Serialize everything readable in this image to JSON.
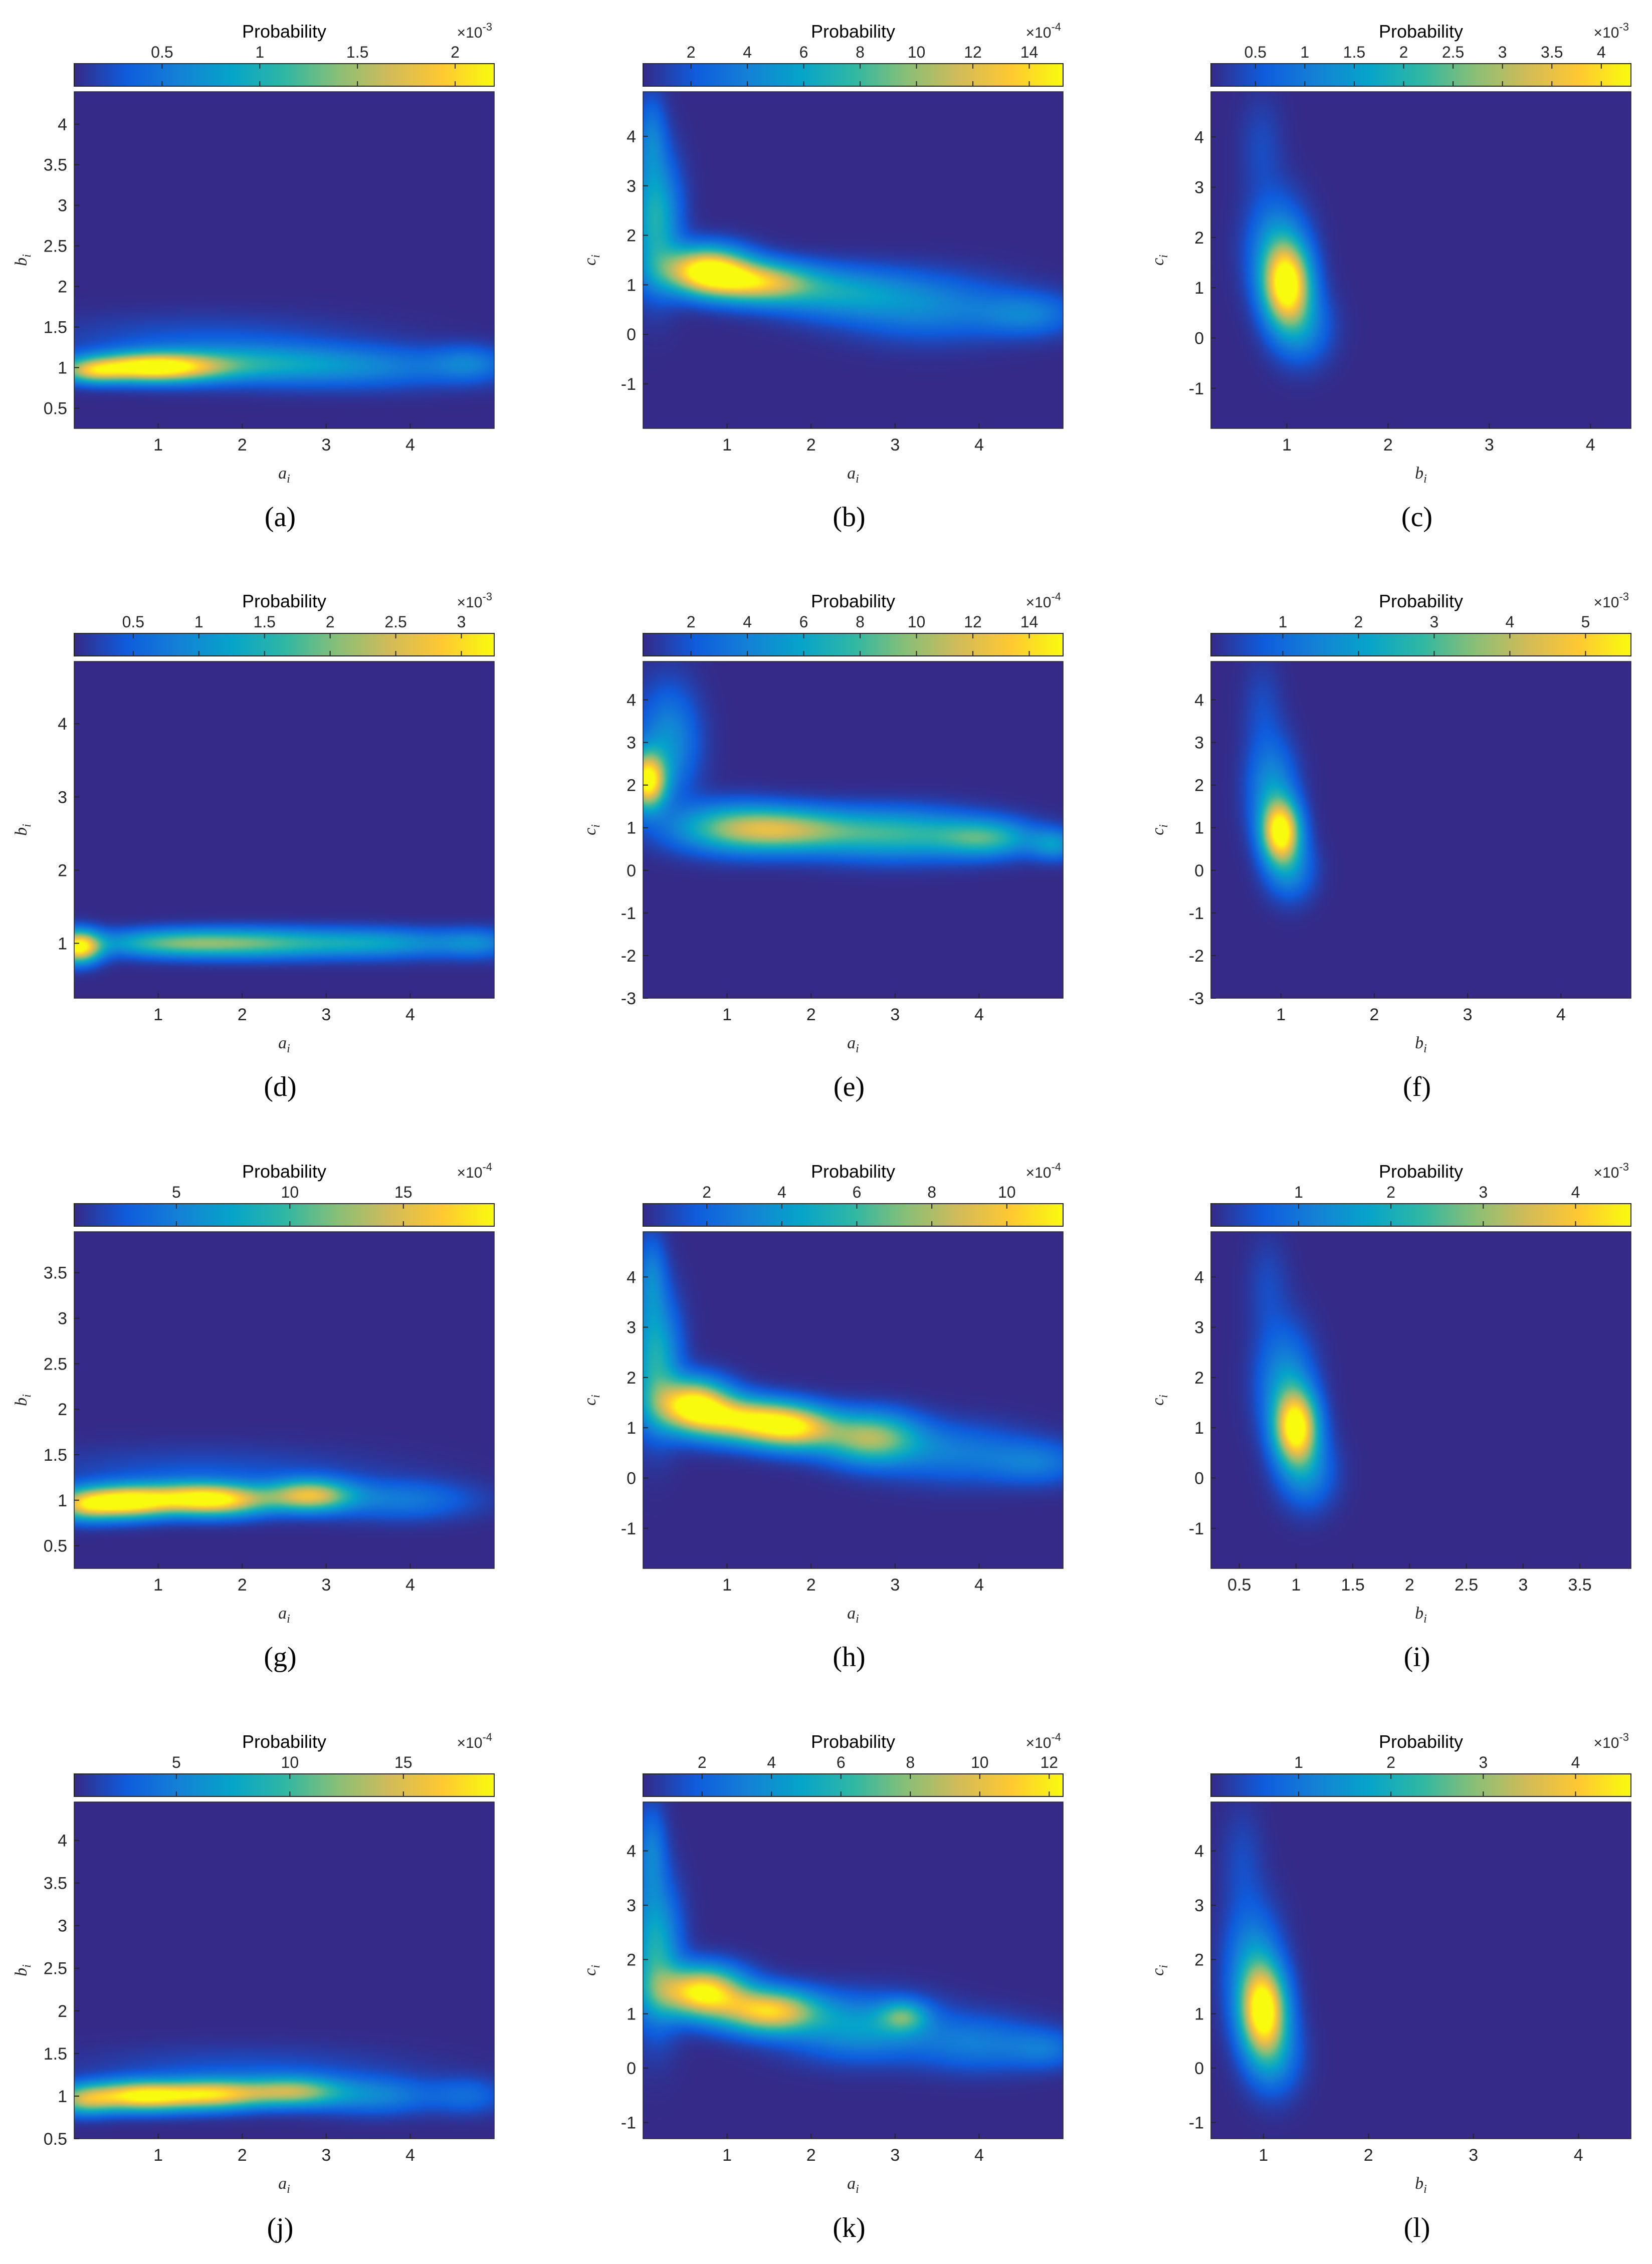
{
  "figure": {
    "colormap": [
      "#352a87",
      "#0f5cdd",
      "#1481d6",
      "#06a4ca",
      "#2eb7a4",
      "#87bf77",
      "#d1bb59",
      "#fec832",
      "#f9fb0e"
    ],
    "background": "#352a87",
    "colorbar_title": "Probability"
  },
  "chart_data": [
    {
      "id": "a",
      "caption": "(a)",
      "type": "heatmap",
      "colorbar": {
        "title": "Probability",
        "exponent_label": "×10",
        "exponent": "-3",
        "ticks": [
          "0.5",
          "1",
          "1.5",
          "2"
        ],
        "range": [
          0.05,
          2.2
        ],
        "tick_values": [
          0.5,
          1,
          1.5,
          2
        ]
      },
      "xlabel_base": "a",
      "xlabel_sub": "i",
      "ylabel_base": "b",
      "ylabel_sub": "i",
      "xlim": [
        0,
        5
      ],
      "ylim": [
        0.25,
        4.4
      ],
      "xticks": [
        1,
        2,
        3,
        4
      ],
      "yticks": [
        0.5,
        1,
        1.5,
        2,
        2.5,
        3,
        3.5,
        4
      ],
      "blobs": [
        {
          "x": 0.9,
          "y": 1.0,
          "sx": 0.55,
          "sy": 0.12,
          "v": 1.0
        },
        {
          "x": 0.2,
          "y": 0.95,
          "sx": 0.25,
          "sy": 0.1,
          "v": 0.45
        },
        {
          "x": 1.9,
          "y": 1.05,
          "sx": 0.9,
          "sy": 0.16,
          "v": 0.3
        },
        {
          "x": 3.4,
          "y": 1.0,
          "sx": 1.0,
          "sy": 0.18,
          "v": 0.22
        },
        {
          "x": 4.7,
          "y": 1.05,
          "sx": 0.3,
          "sy": 0.15,
          "v": 0.18
        },
        {
          "x": 1.5,
          "y": 1.35,
          "sx": 1.3,
          "sy": 0.22,
          "v": 0.1
        }
      ]
    },
    {
      "id": "b",
      "caption": "(b)",
      "type": "heatmap",
      "colorbar": {
        "title": "Probability",
        "exponent_label": "×10",
        "exponent": "-4",
        "ticks": [
          "2",
          "4",
          "6",
          "8",
          "10",
          "12",
          "14"
        ],
        "range": [
          0.3,
          15.2
        ],
        "tick_values": [
          2,
          4,
          6,
          8,
          10,
          12,
          14
        ]
      },
      "xlabel_base": "a",
      "xlabel_sub": "i",
      "ylabel_base": "c",
      "ylabel_sub": "i",
      "xlim": [
        0,
        5
      ],
      "ylim": [
        -1.9,
        4.9
      ],
      "xticks": [
        1,
        2,
        3,
        4
      ],
      "yticks": [
        -1,
        0,
        1,
        2,
        3,
        4
      ],
      "blobs": [
        {
          "x": 0.75,
          "y": 1.3,
          "sx": 0.35,
          "sy": 0.32,
          "v": 1.0
        },
        {
          "x": 1.35,
          "y": 1.05,
          "sx": 0.45,
          "sy": 0.28,
          "v": 0.75
        },
        {
          "x": 0.15,
          "y": 2.3,
          "sx": 0.2,
          "sy": 0.9,
          "v": 0.45
        },
        {
          "x": 2.3,
          "y": 0.85,
          "sx": 0.6,
          "sy": 0.35,
          "v": 0.32
        },
        {
          "x": 3.4,
          "y": 0.55,
          "sx": 0.7,
          "sy": 0.45,
          "v": 0.25
        },
        {
          "x": 4.6,
          "y": 0.4,
          "sx": 0.4,
          "sy": 0.3,
          "v": 0.22
        },
        {
          "x": 0.1,
          "y": 4.0,
          "sx": 0.12,
          "sy": 0.6,
          "v": 0.2
        }
      ]
    },
    {
      "id": "c",
      "caption": "(c)",
      "type": "heatmap",
      "colorbar": {
        "title": "Probability",
        "exponent_label": "×10",
        "exponent": "-3",
        "ticks": [
          "0.5",
          "1",
          "1.5",
          "2",
          "2.5",
          "3",
          "3.5",
          "4"
        ],
        "range": [
          0.05,
          4.3
        ],
        "tick_values": [
          0.5,
          1,
          1.5,
          2,
          2.5,
          3,
          3.5,
          4
        ]
      },
      "xlabel_base": "b",
      "xlabel_sub": "i",
      "ylabel_base": "c",
      "ylabel_sub": "i",
      "xlim": [
        0.25,
        4.4
      ],
      "ylim": [
        -1.8,
        4.9
      ],
      "xticks": [
        1,
        2,
        3,
        4
      ],
      "yticks": [
        -1,
        0,
        1,
        2,
        3,
        4
      ],
      "blobs": [
        {
          "x": 1.0,
          "y": 1.05,
          "sx": 0.16,
          "sy": 0.55,
          "v": 1.0
        },
        {
          "x": 0.9,
          "y": 1.8,
          "sx": 0.2,
          "sy": 0.7,
          "v": 0.3
        },
        {
          "x": 1.15,
          "y": 0.2,
          "sx": 0.2,
          "sy": 0.5,
          "v": 0.25
        },
        {
          "x": 0.75,
          "y": 3.8,
          "sx": 0.15,
          "sy": 0.7,
          "v": 0.08
        }
      ]
    },
    {
      "id": "d",
      "caption": "(d)",
      "type": "heatmap",
      "colorbar": {
        "title": "Probability",
        "exponent_label": "×10",
        "exponent": "-3",
        "ticks": [
          "0.5",
          "1",
          "1.5",
          "2",
          "2.5",
          "3"
        ],
        "range": [
          0.05,
          3.25
        ],
        "tick_values": [
          0.5,
          1,
          1.5,
          2,
          2.5,
          3
        ]
      },
      "xlabel_base": "a",
      "xlabel_sub": "i",
      "ylabel_base": "b",
      "ylabel_sub": "i",
      "xlim": [
        0,
        5
      ],
      "ylim": [
        0.25,
        4.85
      ],
      "xticks": [
        1,
        2,
        3,
        4
      ],
      "yticks": [
        1,
        2,
        3,
        4
      ],
      "blobs": [
        {
          "x": 0.05,
          "y": 0.95,
          "sx": 0.18,
          "sy": 0.15,
          "v": 1.0
        },
        {
          "x": 1.1,
          "y": 1.0,
          "sx": 0.6,
          "sy": 0.13,
          "v": 0.48
        },
        {
          "x": 2.1,
          "y": 1.0,
          "sx": 0.6,
          "sy": 0.14,
          "v": 0.4
        },
        {
          "x": 3.5,
          "y": 1.0,
          "sx": 0.8,
          "sy": 0.14,
          "v": 0.38
        },
        {
          "x": 4.8,
          "y": 1.0,
          "sx": 0.3,
          "sy": 0.14,
          "v": 0.2
        }
      ]
    },
    {
      "id": "e",
      "caption": "(e)",
      "type": "heatmap",
      "colorbar": {
        "title": "Probability",
        "exponent_label": "×10",
        "exponent": "-4",
        "ticks": [
          "2",
          "4",
          "6",
          "8",
          "10",
          "12",
          "14"
        ],
        "range": [
          0.3,
          15.2
        ],
        "tick_values": [
          2,
          4,
          6,
          8,
          10,
          12,
          14
        ]
      },
      "xlabel_base": "a",
      "xlabel_sub": "i",
      "ylabel_base": "c",
      "ylabel_sub": "i",
      "xlim": [
        0,
        5
      ],
      "ylim": [
        -3.0,
        4.9
      ],
      "xticks": [
        1,
        2,
        3,
        4
      ],
      "yticks": [
        -3,
        -2,
        -1,
        0,
        1,
        2,
        3,
        4
      ],
      "blobs": [
        {
          "x": 0.05,
          "y": 2.1,
          "sx": 0.15,
          "sy": 0.45,
          "v": 1.0
        },
        {
          "x": 0.3,
          "y": 3.0,
          "sx": 0.25,
          "sy": 0.9,
          "v": 0.3
        },
        {
          "x": 1.7,
          "y": 0.95,
          "sx": 0.55,
          "sy": 0.35,
          "v": 0.55
        },
        {
          "x": 1.0,
          "y": 1.0,
          "sx": 0.5,
          "sy": 0.4,
          "v": 0.42
        },
        {
          "x": 3.0,
          "y": 0.85,
          "sx": 0.7,
          "sy": 0.4,
          "v": 0.48
        },
        {
          "x": 4.1,
          "y": 0.75,
          "sx": 0.4,
          "sy": 0.3,
          "v": 0.42
        },
        {
          "x": 4.9,
          "y": 0.6,
          "sx": 0.2,
          "sy": 0.25,
          "v": 0.3
        }
      ]
    },
    {
      "id": "f",
      "caption": "(f)",
      "type": "heatmap",
      "colorbar": {
        "title": "Probability",
        "exponent_label": "×10",
        "exponent": "-3",
        "ticks": [
          "1",
          "2",
          "3",
          "4",
          "5"
        ],
        "range": [
          0.05,
          5.6
        ],
        "tick_values": [
          1,
          2,
          3,
          4,
          5
        ]
      },
      "xlabel_base": "b",
      "xlabel_sub": "i",
      "ylabel_base": "c",
      "ylabel_sub": "i",
      "xlim": [
        0.25,
        4.75
      ],
      "ylim": [
        -3.0,
        4.9
      ],
      "xticks": [
        1,
        2,
        3,
        4
      ],
      "yticks": [
        -3,
        -2,
        -1,
        0,
        1,
        2,
        3,
        4
      ],
      "blobs": [
        {
          "x": 1.0,
          "y": 0.9,
          "sx": 0.14,
          "sy": 0.5,
          "v": 1.0
        },
        {
          "x": 0.9,
          "y": 1.9,
          "sx": 0.18,
          "sy": 0.8,
          "v": 0.3
        },
        {
          "x": 1.1,
          "y": 0.0,
          "sx": 0.18,
          "sy": 0.5,
          "v": 0.25
        },
        {
          "x": 0.8,
          "y": 3.8,
          "sx": 0.15,
          "sy": 0.8,
          "v": 0.08
        }
      ]
    },
    {
      "id": "g",
      "caption": "(g)",
      "type": "heatmap",
      "colorbar": {
        "title": "Probability",
        "exponent_label": "×10",
        "exponent": "-4",
        "ticks": [
          "5",
          "10",
          "15"
        ],
        "range": [
          0.5,
          19.0
        ],
        "tick_values": [
          5,
          10,
          15
        ]
      },
      "xlabel_base": "a",
      "xlabel_sub": "i",
      "ylabel_base": "b",
      "ylabel_sub": "i",
      "xlim": [
        0,
        5
      ],
      "ylim": [
        0.25,
        3.95
      ],
      "xticks": [
        1,
        2,
        3,
        4
      ],
      "yticks": [
        0.5,
        1,
        1.5,
        2,
        2.5,
        3,
        3.5
      ],
      "blobs": [
        {
          "x": 0.6,
          "y": 0.98,
          "sx": 0.35,
          "sy": 0.12,
          "v": 1.0
        },
        {
          "x": 0.1,
          "y": 0.95,
          "sx": 0.25,
          "sy": 0.12,
          "v": 0.6
        },
        {
          "x": 1.8,
          "y": 1.0,
          "sx": 0.4,
          "sy": 0.12,
          "v": 0.72
        },
        {
          "x": 2.8,
          "y": 1.05,
          "sx": 0.35,
          "sy": 0.12,
          "v": 0.75
        },
        {
          "x": 1.3,
          "y": 1.02,
          "sx": 0.4,
          "sy": 0.12,
          "v": 0.6
        },
        {
          "x": 3.9,
          "y": 1.0,
          "sx": 0.6,
          "sy": 0.15,
          "v": 0.22
        },
        {
          "x": 1.5,
          "y": 1.3,
          "sx": 1.4,
          "sy": 0.2,
          "v": 0.1
        }
      ]
    },
    {
      "id": "h",
      "caption": "(h)",
      "type": "heatmap",
      "colorbar": {
        "title": "Probability",
        "exponent_label": "×10",
        "exponent": "-4",
        "ticks": [
          "2",
          "4",
          "6",
          "8",
          "10"
        ],
        "range": [
          0.3,
          11.5
        ],
        "tick_values": [
          2,
          4,
          6,
          8,
          10
        ]
      },
      "xlabel_base": "a",
      "xlabel_sub": "i",
      "ylabel_base": "c",
      "ylabel_sub": "i",
      "xlim": [
        0,
        5
      ],
      "ylim": [
        -1.8,
        4.9
      ],
      "xticks": [
        1,
        2,
        3,
        4
      ],
      "yticks": [
        -1,
        0,
        1,
        2,
        3,
        4
      ],
      "blobs": [
        {
          "x": 0.6,
          "y": 1.45,
          "sx": 0.3,
          "sy": 0.35,
          "v": 1.0
        },
        {
          "x": 1.2,
          "y": 1.15,
          "sx": 0.4,
          "sy": 0.3,
          "v": 0.82
        },
        {
          "x": 1.8,
          "y": 1.0,
          "sx": 0.35,
          "sy": 0.3,
          "v": 0.8
        },
        {
          "x": 2.7,
          "y": 0.8,
          "sx": 0.4,
          "sy": 0.35,
          "v": 0.65
        },
        {
          "x": 0.15,
          "y": 2.3,
          "sx": 0.2,
          "sy": 0.9,
          "v": 0.45
        },
        {
          "x": 3.7,
          "y": 0.5,
          "sx": 0.6,
          "sy": 0.4,
          "v": 0.22
        },
        {
          "x": 4.7,
          "y": 0.3,
          "sx": 0.4,
          "sy": 0.3,
          "v": 0.2
        },
        {
          "x": 0.1,
          "y": 4.0,
          "sx": 0.12,
          "sy": 0.6,
          "v": 0.22
        }
      ]
    },
    {
      "id": "i",
      "caption": "(i)",
      "type": "heatmap",
      "colorbar": {
        "title": "Probability",
        "exponent_label": "×10",
        "exponent": "-3",
        "ticks": [
          "1",
          "2",
          "3",
          "4"
        ],
        "range": [
          0.05,
          4.6
        ],
        "tick_values": [
          1,
          2,
          3,
          4
        ]
      },
      "xlabel_base": "b",
      "xlabel_sub": "i",
      "ylabel_base": "c",
      "ylabel_sub": "i",
      "xlim": [
        0.25,
        3.95
      ],
      "ylim": [
        -1.8,
        4.9
      ],
      "xticks": [
        0.5,
        1,
        1.5,
        2,
        2.5,
        3,
        3.5
      ],
      "yticks": [
        -1,
        0,
        1,
        2,
        3,
        4
      ],
      "blobs": [
        {
          "x": 1.0,
          "y": 1.0,
          "sx": 0.13,
          "sy": 0.5,
          "v": 1.0
        },
        {
          "x": 0.9,
          "y": 1.9,
          "sx": 0.17,
          "sy": 0.75,
          "v": 0.3
        },
        {
          "x": 1.1,
          "y": 0.1,
          "sx": 0.17,
          "sy": 0.5,
          "v": 0.25
        },
        {
          "x": 0.75,
          "y": 3.8,
          "sx": 0.13,
          "sy": 0.7,
          "v": 0.08
        }
      ]
    },
    {
      "id": "j",
      "caption": "(j)",
      "type": "heatmap",
      "colorbar": {
        "title": "Probability",
        "exponent_label": "×10",
        "exponent": "-4",
        "ticks": [
          "5",
          "10",
          "15"
        ],
        "range": [
          0.5,
          19.0
        ],
        "tick_values": [
          5,
          10,
          15
        ]
      },
      "xlabel_base": "a",
      "xlabel_sub": "i",
      "ylabel_base": "b",
      "ylabel_sub": "i",
      "xlim": [
        0,
        5
      ],
      "ylim": [
        0.5,
        4.45
      ],
      "xticks": [
        1,
        2,
        3,
        4
      ],
      "yticks": [
        0.5,
        1,
        1.5,
        2,
        2.5,
        3,
        3.5,
        4
      ],
      "blobs": [
        {
          "x": 0.8,
          "y": 1.0,
          "sx": 0.45,
          "sy": 0.12,
          "v": 1.0
        },
        {
          "x": 1.7,
          "y": 1.02,
          "sx": 0.4,
          "sy": 0.12,
          "v": 0.75
        },
        {
          "x": 2.6,
          "y": 1.05,
          "sx": 0.4,
          "sy": 0.12,
          "v": 0.62
        },
        {
          "x": 0.1,
          "y": 0.95,
          "sx": 0.25,
          "sy": 0.12,
          "v": 0.5
        },
        {
          "x": 3.6,
          "y": 1.0,
          "sx": 0.5,
          "sy": 0.15,
          "v": 0.25
        },
        {
          "x": 4.7,
          "y": 1.0,
          "sx": 0.3,
          "sy": 0.15,
          "v": 0.16
        },
        {
          "x": 2.0,
          "y": 1.3,
          "sx": 1.3,
          "sy": 0.2,
          "v": 0.1
        }
      ]
    },
    {
      "id": "k",
      "caption": "(k)",
      "type": "heatmap",
      "colorbar": {
        "title": "Probability",
        "exponent_label": "×10",
        "exponent": "-4",
        "ticks": [
          "2",
          "4",
          "6",
          "8",
          "10",
          "12"
        ],
        "range": [
          0.3,
          12.4
        ],
        "tick_values": [
          2,
          4,
          6,
          8,
          10,
          12
        ]
      },
      "xlabel_base": "a",
      "xlabel_sub": "i",
      "ylabel_base": "c",
      "ylabel_sub": "i",
      "xlim": [
        0,
        5
      ],
      "ylim": [
        -1.3,
        4.9
      ],
      "xticks": [
        1,
        2,
        3,
        4
      ],
      "yticks": [
        -1,
        0,
        1,
        2,
        3,
        4
      ],
      "blobs": [
        {
          "x": 0.7,
          "y": 1.4,
          "sx": 0.35,
          "sy": 0.32,
          "v": 1.0
        },
        {
          "x": 1.5,
          "y": 1.05,
          "sx": 0.4,
          "sy": 0.28,
          "v": 0.85
        },
        {
          "x": 0.15,
          "y": 2.1,
          "sx": 0.2,
          "sy": 0.9,
          "v": 0.45
        },
        {
          "x": 2.6,
          "y": 0.75,
          "sx": 0.6,
          "sy": 0.4,
          "v": 0.35
        },
        {
          "x": 3.1,
          "y": 0.95,
          "sx": 0.2,
          "sy": 0.2,
          "v": 0.38
        },
        {
          "x": 4.0,
          "y": 0.45,
          "sx": 0.5,
          "sy": 0.35,
          "v": 0.22
        },
        {
          "x": 0.1,
          "y": 4.0,
          "sx": 0.12,
          "sy": 0.6,
          "v": 0.22
        },
        {
          "x": 4.8,
          "y": 0.35,
          "sx": 0.3,
          "sy": 0.25,
          "v": 0.18
        }
      ]
    },
    {
      "id": "l",
      "caption": "(l)",
      "type": "heatmap",
      "colorbar": {
        "title": "Probability",
        "exponent_label": "×10",
        "exponent": "-3",
        "ticks": [
          "1",
          "2",
          "3",
          "4"
        ],
        "range": [
          0.05,
          4.6
        ],
        "tick_values": [
          1,
          2,
          3,
          4
        ]
      },
      "xlabel_base": "b",
      "xlabel_sub": "i",
      "ylabel_base": "c",
      "ylabel_sub": "i",
      "xlim": [
        0.5,
        4.5
      ],
      "ylim": [
        -1.3,
        4.9
      ],
      "xticks": [
        1,
        2,
        3,
        4
      ],
      "yticks": [
        -1,
        0,
        1,
        2,
        3,
        4
      ],
      "blobs": [
        {
          "x": 1.0,
          "y": 1.05,
          "sx": 0.15,
          "sy": 0.55,
          "v": 1.0
        },
        {
          "x": 0.9,
          "y": 1.9,
          "sx": 0.18,
          "sy": 0.75,
          "v": 0.3
        },
        {
          "x": 1.1,
          "y": 0.2,
          "sx": 0.18,
          "sy": 0.5,
          "v": 0.25
        },
        {
          "x": 0.8,
          "y": 3.8,
          "sx": 0.14,
          "sy": 0.7,
          "v": 0.08
        }
      ]
    }
  ]
}
